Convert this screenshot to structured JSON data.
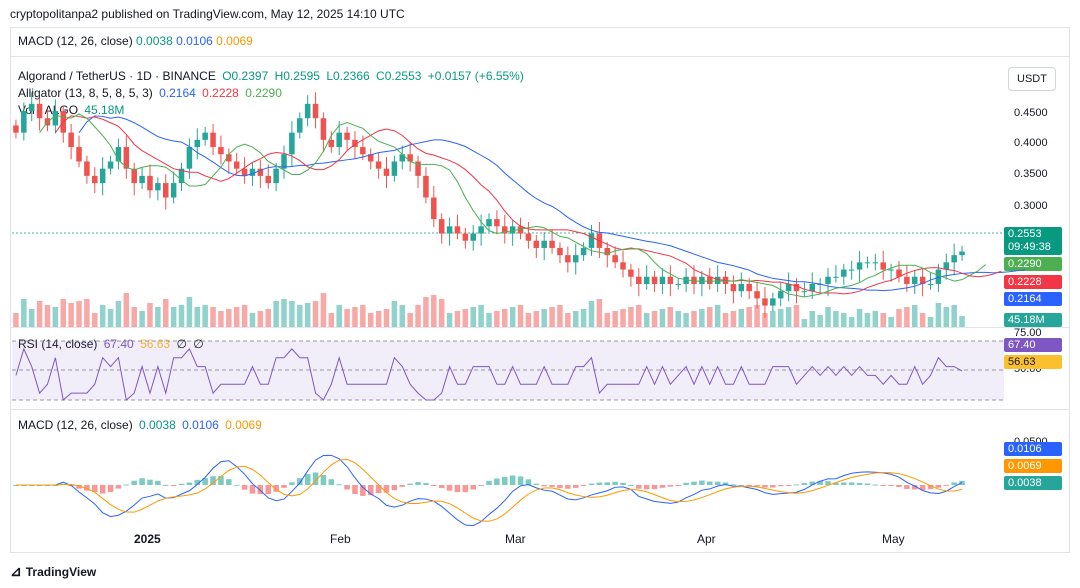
{
  "header": {
    "published_text": "cryptopolitanpa2 published on TradingView.com, May 12, 2025 14:10 UTC"
  },
  "macd_top_legend": {
    "label": "MACD (12, 26, close)",
    "v1": "0.0038",
    "v2": "0.0106",
    "v3": "0.0069"
  },
  "main_legend": {
    "symbol": "Algorand / TetherUS · 1D · BINANCE",
    "open": "O0.2397",
    "high": "H0.2595",
    "low": "L0.2366",
    "close": "C0.2553",
    "change": "+0.0157 (+6.55%)",
    "alligator_label": "Alligator (13, 8, 5, 8, 5, 3)",
    "alligator_v1": "0.2164",
    "alligator_v2": "0.2228",
    "alligator_v3": "0.2290",
    "vol_label": "Vol · ALGO",
    "vol_value": "45.18M"
  },
  "rsi_legend": {
    "label": "RSI (14, close)",
    "v1": "67.40",
    "v2": "56.63",
    "v3": "∅",
    "v4": "∅"
  },
  "macd_legend": {
    "label": "MACD (12, 26, close)",
    "v1": "0.0038",
    "v2": "0.0106",
    "v3": "0.0069"
  },
  "currency_button": "USDT",
  "price_axis": [
    "0.4500",
    "0.4000",
    "0.3500",
    "0.3000"
  ],
  "price_tags": {
    "last": "0.2553",
    "countdown": "09:49:38",
    "green": "0.2290",
    "red": "0.2228",
    "blue": "0.2164",
    "volume": "45.18M"
  },
  "rsi_axis": {
    "top": "75.00",
    "bottom": "50.00",
    "rsi_tag": "67.40",
    "ma_tag": "56.63"
  },
  "macd_axis": {
    "top": "0.0500",
    "tag_signal": "0.0106",
    "tag_macd": "0.0069",
    "tag_hist": "0.0038"
  },
  "time_axis": [
    "2025",
    "Feb",
    "Mar",
    "Apr",
    "May"
  ],
  "footer": {
    "brand": "TradingView"
  },
  "colors": {
    "up": "#26a69a",
    "down": "#ef5350",
    "blue": "#2962ff",
    "red": "#f23645",
    "green": "#4caf50",
    "rsi": "#7e57c2",
    "rsi_ma": "#fbc02d",
    "macd": "#2962ff",
    "signal": "#ff9800"
  },
  "chart_data": {
    "type": "candlestick",
    "title": "Algorand / TetherUS · 1D · BINANCE",
    "price_range": [
      0.16,
      0.5
    ],
    "x_labels": [
      "2025",
      "Feb",
      "Mar",
      "Apr",
      "May"
    ],
    "close_series_approx": [
      0.42,
      0.45,
      0.46,
      0.44,
      0.43,
      0.45,
      0.42,
      0.4,
      0.38,
      0.36,
      0.35,
      0.37,
      0.38,
      0.4,
      0.37,
      0.35,
      0.36,
      0.34,
      0.35,
      0.33,
      0.35,
      0.37,
      0.4,
      0.41,
      0.42,
      0.4,
      0.39,
      0.38,
      0.37,
      0.36,
      0.37,
      0.36,
      0.35,
      0.37,
      0.39,
      0.42,
      0.44,
      0.46,
      0.44,
      0.41,
      0.4,
      0.42,
      0.41,
      0.4,
      0.39,
      0.38,
      0.37,
      0.36,
      0.38,
      0.39,
      0.38,
      0.36,
      0.33,
      0.3,
      0.28,
      0.29,
      0.28,
      0.27,
      0.28,
      0.29,
      0.3,
      0.29,
      0.28,
      0.29,
      0.28,
      0.27,
      0.26,
      0.27,
      0.26,
      0.25,
      0.24,
      0.25,
      0.26,
      0.28,
      0.26,
      0.25,
      0.24,
      0.23,
      0.22,
      0.21,
      0.22,
      0.21,
      0.22,
      0.21,
      0.21,
      0.22,
      0.21,
      0.22,
      0.21,
      0.22,
      0.21,
      0.2,
      0.21,
      0.2,
      0.19,
      0.18,
      0.19,
      0.2,
      0.21,
      0.2,
      0.2,
      0.21,
      0.21,
      0.22,
      0.22,
      0.23,
      0.23,
      0.24,
      0.24,
      0.24,
      0.23,
      0.23,
      0.22,
      0.21,
      0.22,
      0.21,
      0.21,
      0.23,
      0.24,
      0.25,
      0.255
    ],
    "last_close": 0.2553
  }
}
